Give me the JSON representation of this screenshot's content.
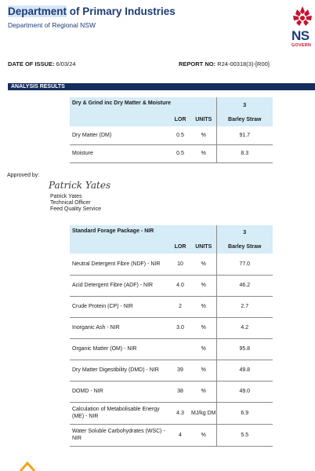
{
  "header": {
    "org_title_highlight": "Department",
    "org_title_rest": " of Primary Industries",
    "org_subtitle": "Department of Regional NSW",
    "logo_text": "NS",
    "logo_subtext": "GOVERN"
  },
  "meta": {
    "issue_label": "DATE OF ISSUE:",
    "issue_value": "6/03/24",
    "report_label": "REPORT NO:",
    "report_value": "R24-00318(3)-[R00]"
  },
  "section_title": "ANALYSIS RESULTS",
  "table1": {
    "title": "Dry & Grind inc Dry Matter & Moisture",
    "col_lor": "LOR",
    "col_units": "UNITS",
    "sample_number": "3",
    "sample_name": "Barley Straw",
    "rows": [
      {
        "name": "Dry Matter (DM)",
        "lor": "0.5",
        "units": "%",
        "value": "91.7"
      },
      {
        "name": "Moisture",
        "lor": "0.5",
        "units": "%",
        "value": "8.3"
      }
    ]
  },
  "approval": {
    "label": "Approved by:",
    "signature": "Patrick Yates",
    "name": "Patrick Yates",
    "role": "Technical Officer",
    "service": "Feed Quality Service"
  },
  "table2": {
    "title": "Standard Forage Package - NIR",
    "col_lor": "LOR",
    "col_units": "UNITS",
    "sample_number": "3",
    "sample_name": "Barley Straw",
    "rows": [
      {
        "name": "Neutral Detergent Fibre (NDF) - NIR",
        "lor": "10",
        "units": "%",
        "value": "77.0"
      },
      {
        "name": "Acid Detergent Fibre (ADF) - NIR",
        "lor": "4.0",
        "units": "%",
        "value": "46.2"
      },
      {
        "name": "Crude Protein (CP) - NIR",
        "lor": "2",
        "units": "%",
        "value": "2.7"
      },
      {
        "name": "Inorganic Ash - NIR",
        "lor": "3.0",
        "units": "%",
        "value": "4.2"
      },
      {
        "name": "Organic Matter (OM) - NIR",
        "lor": "",
        "units": "%",
        "value": "95.8"
      },
      {
        "name": "Dry Matter Digestibility (DMD) - NIR",
        "lor": "39",
        "units": "%",
        "value": "49.8"
      },
      {
        "name": "DOMD - NIR",
        "lor": "38",
        "units": "%",
        "value": "49.0"
      },
      {
        "name": "Calculation of Metabolisable Energy (ME) - NIR",
        "lor": "4.3",
        "units": "MJ/kg DM",
        "value": "6.9"
      },
      {
        "name": "Water Soluble Carbohydrates (WSC) - NIR",
        "lor": "4",
        "units": "%",
        "value": "5.5"
      }
    ]
  }
}
